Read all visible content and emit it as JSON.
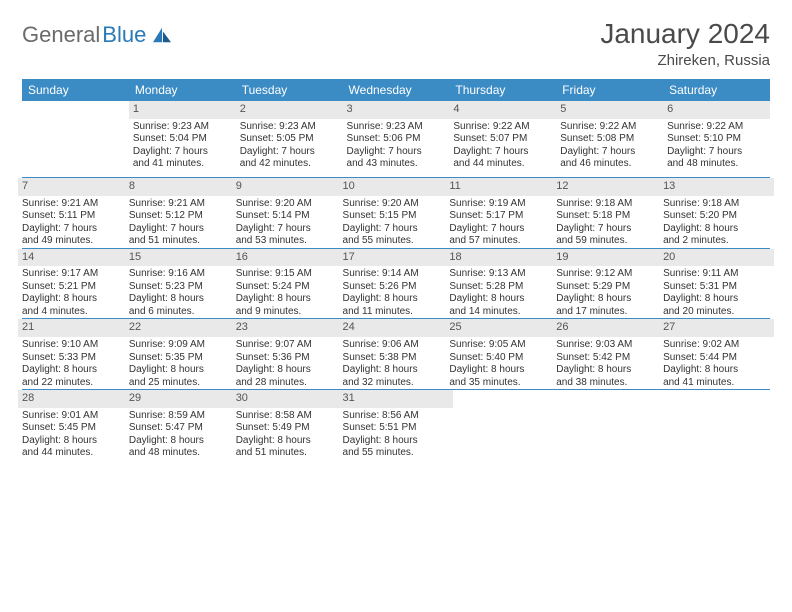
{
  "brand": {
    "part1": "General",
    "part2": "Blue"
  },
  "title": "January 2024",
  "location": "Zhireken, Russia",
  "colors": {
    "header_bg": "#3b8bc4",
    "header_fg": "#ffffff",
    "daynum_bg": "#e9e9e9",
    "rule": "#3b8bc4",
    "text": "#333333",
    "title": "#4a4a4a",
    "logo_gray": "#6b6b6b",
    "logo_blue": "#2a7ab8"
  },
  "dayNames": [
    "Sunday",
    "Monday",
    "Tuesday",
    "Wednesday",
    "Thursday",
    "Friday",
    "Saturday"
  ],
  "weeks": [
    [
      {
        "n": "",
        "empty": true
      },
      {
        "n": "1",
        "sr": "Sunrise: 9:23 AM",
        "ss": "Sunset: 5:04 PM",
        "d1": "Daylight: 7 hours",
        "d2": "and 41 minutes."
      },
      {
        "n": "2",
        "sr": "Sunrise: 9:23 AM",
        "ss": "Sunset: 5:05 PM",
        "d1": "Daylight: 7 hours",
        "d2": "and 42 minutes."
      },
      {
        "n": "3",
        "sr": "Sunrise: 9:23 AM",
        "ss": "Sunset: 5:06 PM",
        "d1": "Daylight: 7 hours",
        "d2": "and 43 minutes."
      },
      {
        "n": "4",
        "sr": "Sunrise: 9:22 AM",
        "ss": "Sunset: 5:07 PM",
        "d1": "Daylight: 7 hours",
        "d2": "and 44 minutes."
      },
      {
        "n": "5",
        "sr": "Sunrise: 9:22 AM",
        "ss": "Sunset: 5:08 PM",
        "d1": "Daylight: 7 hours",
        "d2": "and 46 minutes."
      },
      {
        "n": "6",
        "sr": "Sunrise: 9:22 AM",
        "ss": "Sunset: 5:10 PM",
        "d1": "Daylight: 7 hours",
        "d2": "and 48 minutes."
      }
    ],
    [
      {
        "n": "7",
        "sr": "Sunrise: 9:21 AM",
        "ss": "Sunset: 5:11 PM",
        "d1": "Daylight: 7 hours",
        "d2": "and 49 minutes."
      },
      {
        "n": "8",
        "sr": "Sunrise: 9:21 AM",
        "ss": "Sunset: 5:12 PM",
        "d1": "Daylight: 7 hours",
        "d2": "and 51 minutes."
      },
      {
        "n": "9",
        "sr": "Sunrise: 9:20 AM",
        "ss": "Sunset: 5:14 PM",
        "d1": "Daylight: 7 hours",
        "d2": "and 53 minutes."
      },
      {
        "n": "10",
        "sr": "Sunrise: 9:20 AM",
        "ss": "Sunset: 5:15 PM",
        "d1": "Daylight: 7 hours",
        "d2": "and 55 minutes."
      },
      {
        "n": "11",
        "sr": "Sunrise: 9:19 AM",
        "ss": "Sunset: 5:17 PM",
        "d1": "Daylight: 7 hours",
        "d2": "and 57 minutes."
      },
      {
        "n": "12",
        "sr": "Sunrise: 9:18 AM",
        "ss": "Sunset: 5:18 PM",
        "d1": "Daylight: 7 hours",
        "d2": "and 59 minutes."
      },
      {
        "n": "13",
        "sr": "Sunrise: 9:18 AM",
        "ss": "Sunset: 5:20 PM",
        "d1": "Daylight: 8 hours",
        "d2": "and 2 minutes."
      }
    ],
    [
      {
        "n": "14",
        "sr": "Sunrise: 9:17 AM",
        "ss": "Sunset: 5:21 PM",
        "d1": "Daylight: 8 hours",
        "d2": "and 4 minutes."
      },
      {
        "n": "15",
        "sr": "Sunrise: 9:16 AM",
        "ss": "Sunset: 5:23 PM",
        "d1": "Daylight: 8 hours",
        "d2": "and 6 minutes."
      },
      {
        "n": "16",
        "sr": "Sunrise: 9:15 AM",
        "ss": "Sunset: 5:24 PM",
        "d1": "Daylight: 8 hours",
        "d2": "and 9 minutes."
      },
      {
        "n": "17",
        "sr": "Sunrise: 9:14 AM",
        "ss": "Sunset: 5:26 PM",
        "d1": "Daylight: 8 hours",
        "d2": "and 11 minutes."
      },
      {
        "n": "18",
        "sr": "Sunrise: 9:13 AM",
        "ss": "Sunset: 5:28 PM",
        "d1": "Daylight: 8 hours",
        "d2": "and 14 minutes."
      },
      {
        "n": "19",
        "sr": "Sunrise: 9:12 AM",
        "ss": "Sunset: 5:29 PM",
        "d1": "Daylight: 8 hours",
        "d2": "and 17 minutes."
      },
      {
        "n": "20",
        "sr": "Sunrise: 9:11 AM",
        "ss": "Sunset: 5:31 PM",
        "d1": "Daylight: 8 hours",
        "d2": "and 20 minutes."
      }
    ],
    [
      {
        "n": "21",
        "sr": "Sunrise: 9:10 AM",
        "ss": "Sunset: 5:33 PM",
        "d1": "Daylight: 8 hours",
        "d2": "and 22 minutes."
      },
      {
        "n": "22",
        "sr": "Sunrise: 9:09 AM",
        "ss": "Sunset: 5:35 PM",
        "d1": "Daylight: 8 hours",
        "d2": "and 25 minutes."
      },
      {
        "n": "23",
        "sr": "Sunrise: 9:07 AM",
        "ss": "Sunset: 5:36 PM",
        "d1": "Daylight: 8 hours",
        "d2": "and 28 minutes."
      },
      {
        "n": "24",
        "sr": "Sunrise: 9:06 AM",
        "ss": "Sunset: 5:38 PM",
        "d1": "Daylight: 8 hours",
        "d2": "and 32 minutes."
      },
      {
        "n": "25",
        "sr": "Sunrise: 9:05 AM",
        "ss": "Sunset: 5:40 PM",
        "d1": "Daylight: 8 hours",
        "d2": "and 35 minutes."
      },
      {
        "n": "26",
        "sr": "Sunrise: 9:03 AM",
        "ss": "Sunset: 5:42 PM",
        "d1": "Daylight: 8 hours",
        "d2": "and 38 minutes."
      },
      {
        "n": "27",
        "sr": "Sunrise: 9:02 AM",
        "ss": "Sunset: 5:44 PM",
        "d1": "Daylight: 8 hours",
        "d2": "and 41 minutes."
      }
    ],
    [
      {
        "n": "28",
        "sr": "Sunrise: 9:01 AM",
        "ss": "Sunset: 5:45 PM",
        "d1": "Daylight: 8 hours",
        "d2": "and 44 minutes."
      },
      {
        "n": "29",
        "sr": "Sunrise: 8:59 AM",
        "ss": "Sunset: 5:47 PM",
        "d1": "Daylight: 8 hours",
        "d2": "and 48 minutes."
      },
      {
        "n": "30",
        "sr": "Sunrise: 8:58 AM",
        "ss": "Sunset: 5:49 PM",
        "d1": "Daylight: 8 hours",
        "d2": "and 51 minutes."
      },
      {
        "n": "31",
        "sr": "Sunrise: 8:56 AM",
        "ss": "Sunset: 5:51 PM",
        "d1": "Daylight: 8 hours",
        "d2": "and 55 minutes."
      },
      {
        "n": "",
        "empty": true
      },
      {
        "n": "",
        "empty": true
      },
      {
        "n": "",
        "empty": true
      }
    ]
  ]
}
